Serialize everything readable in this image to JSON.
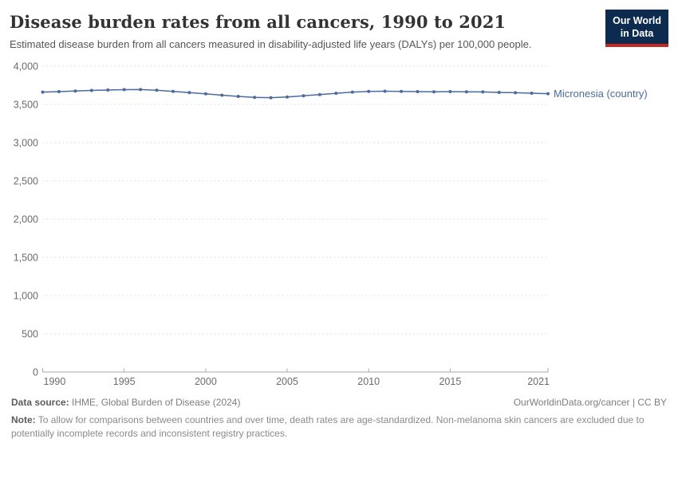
{
  "header": {
    "title": "Disease burden rates from all cancers, 1990 to 2021",
    "subtitle": "Estimated disease burden from all cancers measured in disability-adjusted life years (DALYs) per 100,000 people.",
    "logo": {
      "line1": "Our World",
      "line2": "in Data"
    }
  },
  "chart_data": {
    "type": "line",
    "title": "Disease burden rates from all cancers, 1990 to 2021",
    "subtitle": "Estimated disease burden from all cancers measured in disability-adjusted life years (DALYs) per 100,000 people.",
    "x": [
      1990,
      1991,
      1992,
      1993,
      1994,
      1995,
      1996,
      1997,
      1998,
      1999,
      2000,
      2001,
      2002,
      2003,
      2004,
      2005,
      2006,
      2007,
      2008,
      2009,
      2010,
      2011,
      2012,
      2013,
      2014,
      2015,
      2016,
      2017,
      2018,
      2019,
      2020,
      2021
    ],
    "series": [
      {
        "name": "Micronesia (country)",
        "color": "#4C6A9C",
        "values": [
          3660,
          3667,
          3675,
          3682,
          3688,
          3693,
          3694,
          3685,
          3670,
          3654,
          3638,
          3620,
          3604,
          3591,
          3588,
          3597,
          3612,
          3628,
          3645,
          3660,
          3670,
          3672,
          3670,
          3667,
          3665,
          3667,
          3665,
          3662,
          3656,
          3652,
          3646,
          3640
        ]
      }
    ],
    "xlabel": "",
    "ylabel": "DALYs per 100,000 people",
    "ylim": [
      0,
      4000
    ],
    "yticks": [
      0,
      500,
      1000,
      1500,
      2000,
      2500,
      3000,
      3500,
      4000
    ],
    "xticks": [
      1990,
      1995,
      2000,
      2005,
      2010,
      2015,
      2021
    ],
    "grid": "horizontal-dashed",
    "grid_color": "#dedede",
    "axis_color": "#a8a8a8",
    "legend_position": "end-of-line-label"
  },
  "footer": {
    "datasource_label": "Data source:",
    "datasource_text": " IHME, Global Burden of Disease (2024)",
    "link_text": "OurWorldinData.org/cancer | CC BY",
    "note_label": "Note:",
    "note_text": " To allow for comparisons between countries and over time, death rates are age-standardized. Non-melanoma skin cancers are excluded due to potentially incomplete records and inconsistent registry practices."
  },
  "colors": {
    "accent_line": "#4C6A9C",
    "logo_bg": "#0d2b4e",
    "logo_stripe": "#c5291f",
    "title_text": "#333333",
    "subtitle_text": "#555555",
    "tick_text": "#6b6b6b"
  }
}
